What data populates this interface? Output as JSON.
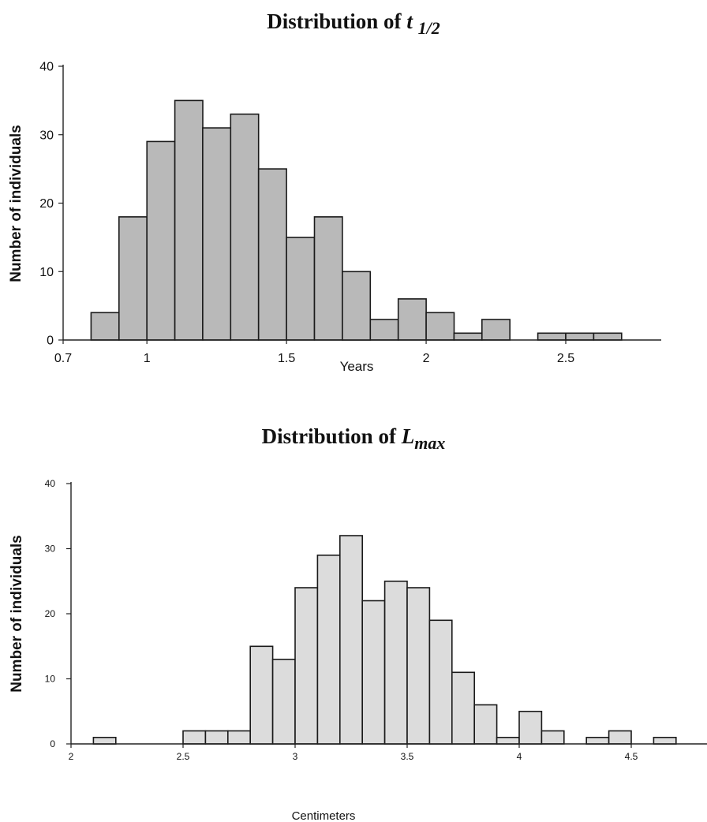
{
  "chart_data": [
    {
      "type": "bar",
      "title": {
        "prefix": "Distribution of ",
        "symbol": "t",
        "subscript": "1/2"
      },
      "xlabel": "Years",
      "ylabel": "Number of individuals",
      "xlim": [
        0.7,
        2.9
      ],
      "ylim": [
        0,
        40
      ],
      "bin_width": 0.1,
      "x_ticks": [
        "0.7",
        "1",
        "1.5",
        "2",
        "2.5"
      ],
      "x_tick_values": [
        0.7,
        1,
        1.5,
        2,
        2.5
      ],
      "y_ticks": [
        "0",
        "10",
        "20",
        "30",
        "40"
      ],
      "y_tick_values": [
        0,
        10,
        20,
        30,
        40
      ],
      "bins": [
        {
          "x0": 0.8,
          "value": 4
        },
        {
          "x0": 0.9,
          "value": 18
        },
        {
          "x0": 1.0,
          "value": 29
        },
        {
          "x0": 1.1,
          "value": 35
        },
        {
          "x0": 1.2,
          "value": 31
        },
        {
          "x0": 1.3,
          "value": 33
        },
        {
          "x0": 1.4,
          "value": 25
        },
        {
          "x0": 1.5,
          "value": 15
        },
        {
          "x0": 1.6,
          "value": 18
        },
        {
          "x0": 1.7,
          "value": 10
        },
        {
          "x0": 1.8,
          "value": 3
        },
        {
          "x0": 1.9,
          "value": 6
        },
        {
          "x0": 2.0,
          "value": 4
        },
        {
          "x0": 2.1,
          "value": 1
        },
        {
          "x0": 2.2,
          "value": 3
        },
        {
          "x0": 2.4,
          "value": 1
        },
        {
          "x0": 2.5,
          "value": 1
        },
        {
          "x0": 2.6,
          "value": 1
        }
      ],
      "bar_fill": "#b9b9b9",
      "grid": false
    },
    {
      "type": "bar",
      "title": {
        "prefix": "Distribution of ",
        "symbol": "L",
        "subscript": "max"
      },
      "xlabel": "Centimeters",
      "ylabel": "Number of individuals",
      "xlim": [
        2,
        4.75
      ],
      "ylim": [
        0,
        40
      ],
      "bin_width": 0.1,
      "x_ticks": [
        "2",
        "2.5",
        "3",
        "3.5",
        "4",
        "4.5"
      ],
      "x_tick_values": [
        2,
        2.5,
        3,
        3.5,
        4,
        4.5
      ],
      "y_ticks": [
        "0",
        "10",
        "20",
        "30",
        "40"
      ],
      "y_tick_values": [
        0,
        10,
        20,
        30,
        40
      ],
      "bins": [
        {
          "x0": 2.1,
          "value": 1
        },
        {
          "x0": 2.5,
          "value": 2
        },
        {
          "x0": 2.6,
          "value": 2
        },
        {
          "x0": 2.7,
          "value": 2
        },
        {
          "x0": 2.8,
          "value": 15
        },
        {
          "x0": 2.9,
          "value": 13
        },
        {
          "x0": 3.0,
          "value": 24
        },
        {
          "x0": 3.1,
          "value": 29
        },
        {
          "x0": 3.2,
          "value": 32
        },
        {
          "x0": 3.3,
          "value": 22
        },
        {
          "x0": 3.4,
          "value": 25
        },
        {
          "x0": 3.5,
          "value": 24
        },
        {
          "x0": 3.6,
          "value": 19
        },
        {
          "x0": 3.7,
          "value": 11
        },
        {
          "x0": 3.8,
          "value": 6
        },
        {
          "x0": 3.9,
          "value": 1
        },
        {
          "x0": 4.0,
          "value": 5
        },
        {
          "x0": 4.1,
          "value": 2
        },
        {
          "x0": 4.3,
          "value": 1
        },
        {
          "x0": 4.4,
          "value": 2
        },
        {
          "x0": 4.6,
          "value": 1
        }
      ],
      "bar_fill": "#dcdcdc",
      "grid": false
    }
  ]
}
